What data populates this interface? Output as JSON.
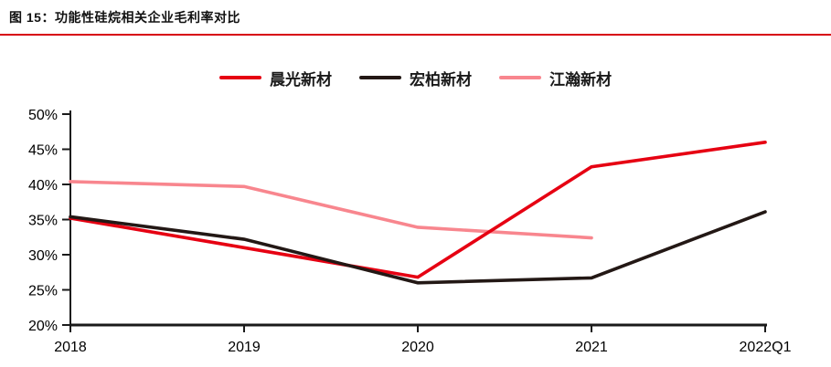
{
  "figure": {
    "title": "图 15：功能性硅烷相关企业毛利率对比",
    "rule_color": "#d7000f"
  },
  "chart_data": {
    "type": "line",
    "title": "功能性硅烷相关企业毛利率对比",
    "categories": [
      "2018",
      "2019",
      "2020",
      "2021",
      "2022Q1"
    ],
    "series": [
      {
        "name": "晨光新材",
        "color": "#e60012",
        "values": [
          35.2,
          31.0,
          26.8,
          42.5,
          46.0
        ]
      },
      {
        "name": "宏柏新材",
        "color": "#231815",
        "values": [
          35.4,
          32.2,
          26.0,
          26.7,
          36.1
        ]
      },
      {
        "name": "江瀚新材",
        "color": "#f8868e",
        "values": [
          40.4,
          39.7,
          33.9,
          32.4,
          null
        ]
      }
    ],
    "ylabel": "",
    "xlabel": "",
    "ylim": [
      20,
      50
    ],
    "ytick_step": 5,
    "ytick_labels": [
      "20%",
      "25%",
      "30%",
      "35%",
      "40%",
      "45%",
      "50%"
    ],
    "grid": false,
    "legend_position": "top-center",
    "axis_color": "#1a1a1a",
    "tick_label_color": "#000000",
    "tick_label_size": 16
  }
}
